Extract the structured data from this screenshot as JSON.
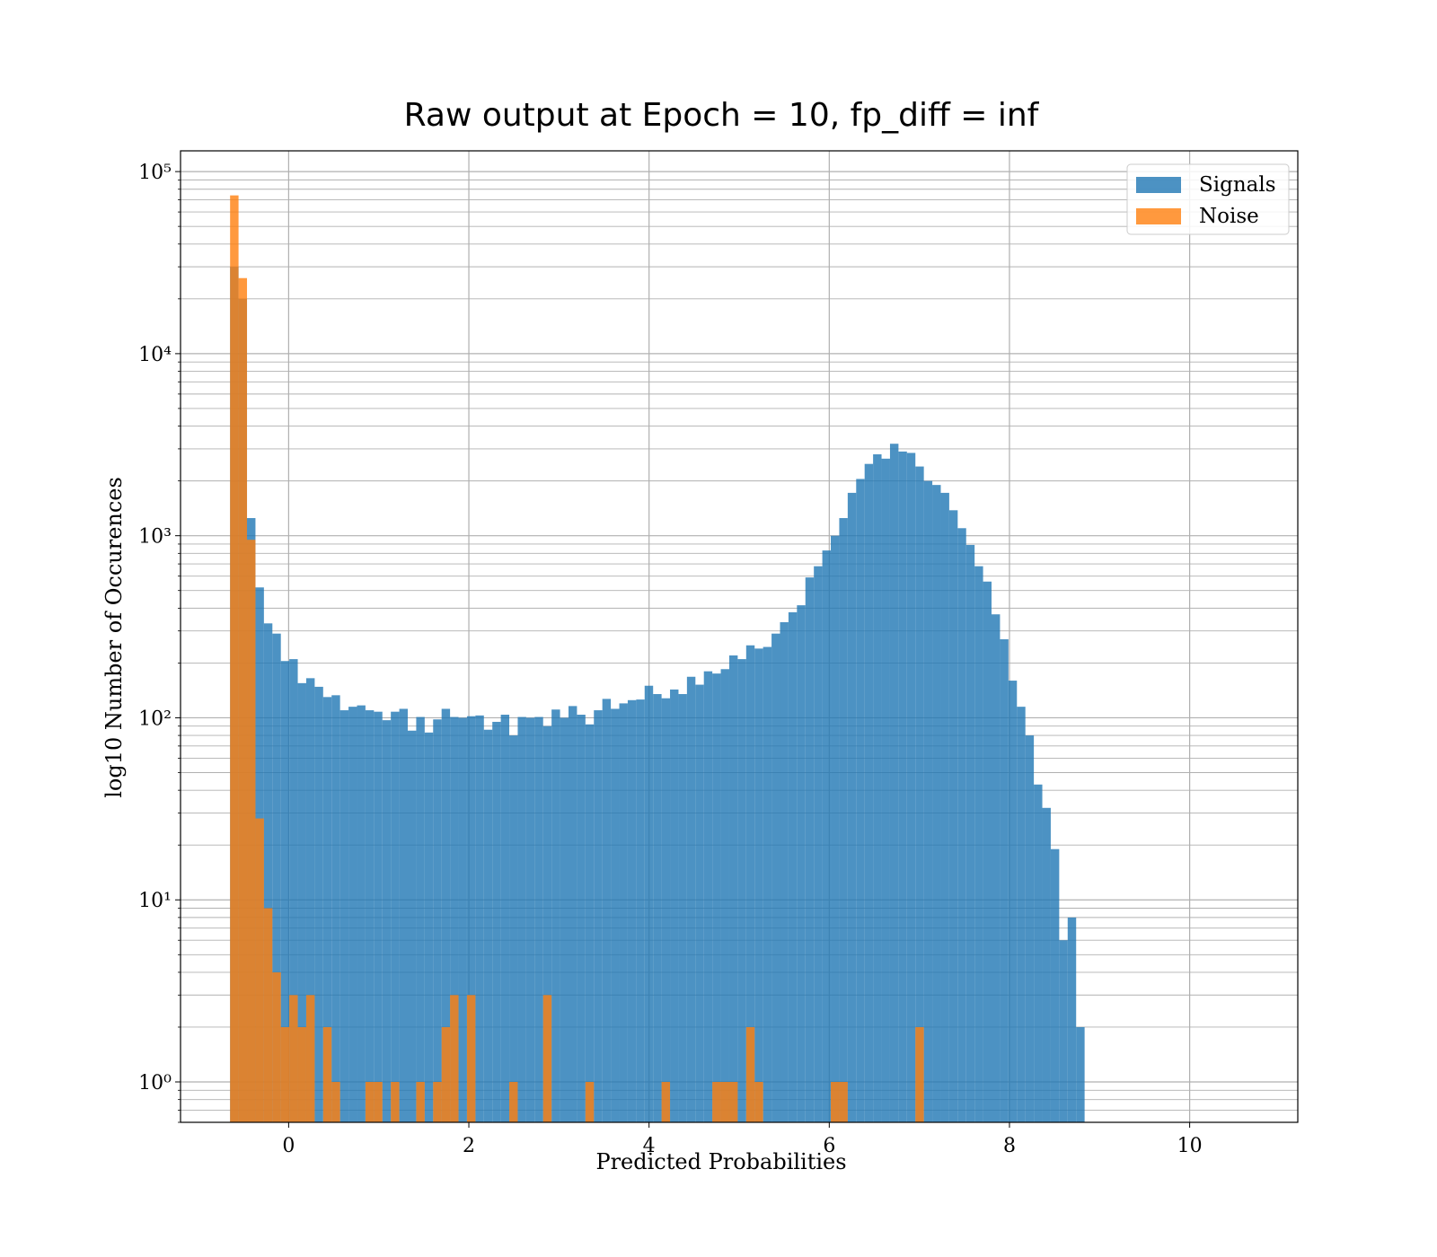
{
  "chart_data": {
    "type": "bar",
    "title": "Raw output at Epoch = 10, fp_diff = inf",
    "xlabel": "Predicted Probabilities",
    "ylabel": "log10 Number of Occurences",
    "xlim": [
      -1.2,
      11.2
    ],
    "ylim": [
      0.6,
      130000
    ],
    "yscale": "log",
    "grid": true,
    "legend_position": "top-right",
    "x_ticks": [
      0,
      2,
      4,
      6,
      8,
      10
    ],
    "x_tick_labels": [
      "0",
      "2",
      "4",
      "6",
      "8",
      "10"
    ],
    "y_ticks": [
      1,
      10,
      100,
      1000,
      10000,
      100000
    ],
    "y_tick_labels": [
      "10⁰",
      "10¹",
      "10²",
      "10³",
      "10⁴",
      "10⁵"
    ],
    "bin_start": -0.65,
    "bin_width": 0.0939,
    "series": [
      {
        "name": "Signals",
        "color": "#1f77b4",
        "values": [
          30000,
          20000,
          1250,
          520,
          330,
          290,
          205,
          210,
          155,
          165,
          148,
          130,
          133,
          110,
          115,
          117,
          110,
          108,
          97,
          108,
          112,
          85,
          101,
          83,
          98,
          112,
          101,
          100,
          102,
          103,
          86,
          95,
          104,
          80,
          101,
          100,
          101,
          90,
          111,
          100,
          116,
          104,
          92,
          110,
          127,
          112,
          120,
          125,
          126,
          150,
          135,
          128,
          143,
          135,
          168,
          152,
          180,
          175,
          185,
          220,
          210,
          250,
          240,
          245,
          290,
          335,
          380,
          415,
          590,
          680,
          830,
          1000,
          1250,
          1720,
          2050,
          2480,
          2800,
          2650,
          3200,
          2900,
          2850,
          2400,
          2000,
          1900,
          1720,
          1380,
          1100,
          890,
          680,
          560,
          370,
          270,
          160,
          115,
          80,
          43,
          32,
          19,
          6,
          8,
          2
        ]
      },
      {
        "name": "Noise",
        "color": "#ff7f0e",
        "values": [
          74000,
          26000,
          950,
          28,
          9,
          4,
          2,
          3,
          2,
          3,
          0,
          2,
          1,
          0,
          0,
          0,
          1,
          1,
          0,
          1,
          0,
          0,
          1,
          0,
          1,
          2,
          3,
          0,
          3,
          0,
          0,
          0,
          0,
          1,
          0,
          0,
          0,
          3,
          0,
          0,
          0,
          0,
          1,
          0,
          0,
          0,
          0,
          0,
          0,
          0,
          0,
          1,
          0,
          0,
          0,
          0,
          0,
          1,
          1,
          1,
          0,
          2,
          1,
          0,
          0,
          0,
          0,
          0,
          0,
          0,
          0,
          1,
          1,
          0,
          0,
          0,
          0,
          0,
          0,
          0,
          0,
          2,
          0,
          0,
          0,
          0,
          0,
          0,
          0,
          0,
          0,
          0,
          0,
          0,
          0,
          0,
          0,
          0,
          0,
          0,
          0
        ]
      }
    ]
  }
}
